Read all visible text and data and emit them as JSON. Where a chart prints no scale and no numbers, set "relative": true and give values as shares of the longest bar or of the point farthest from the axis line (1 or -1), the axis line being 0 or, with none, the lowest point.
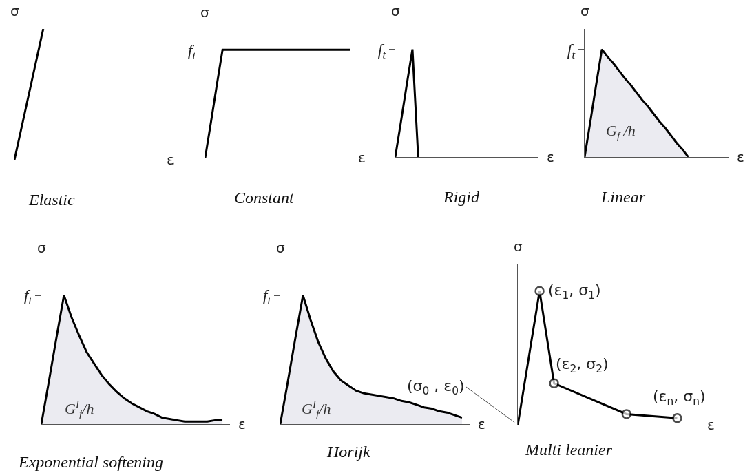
{
  "chart_data": [
    {
      "type": "line",
      "title": "Elastic",
      "xlabel": "ε",
      "ylabel": "σ",
      "relative": true,
      "categories": [
        null,
        null,
        null,
        null,
        null,
        null,
        null,
        null,
        null,
        null,
        null,
        null,
        null,
        null,
        null,
        null,
        null,
        null,
        null,
        null,
        null,
        null,
        null,
        null,
        null,
        null
      ],
      "values": [
        0,
        0.2,
        0.4,
        0.6,
        0.8,
        1,
        null,
        null,
        null,
        null,
        null,
        null,
        null,
        null,
        null,
        null,
        null,
        null,
        null,
        null,
        null,
        null,
        null,
        null,
        null,
        null
      ],
      "color": "#000000"
    },
    {
      "type": "line",
      "title": "Constant",
      "xlabel": "ε",
      "ylabel": "σ",
      "relative": true,
      "categories": [
        null,
        null,
        null,
        null,
        null,
        null,
        null,
        null,
        null,
        null,
        null,
        null,
        null,
        null,
        null,
        null,
        null,
        null,
        null,
        null,
        null,
        null,
        null,
        null,
        null,
        null
      ],
      "values": [
        0,
        0.33,
        0.67,
        1,
        1,
        1,
        1,
        1,
        1,
        1,
        1,
        1,
        1,
        1,
        1,
        1,
        1,
        1,
        1,
        1,
        1,
        1,
        1,
        1,
        1,
        1
      ],
      "color": "#000000",
      "annotations": [
        "f$_{t}$"
      ]
    },
    {
      "type": "line",
      "title": "Rigid",
      "xlabel": "ε",
      "ylabel": "σ",
      "relative": true,
      "categories": [
        null,
        null,
        null,
        null,
        null,
        null,
        null,
        null,
        null,
        null,
        null,
        null,
        null,
        null,
        null,
        null,
        null,
        null,
        null,
        null,
        null,
        null,
        null,
        null,
        null,
        null
      ],
      "values": [
        0,
        0.33,
        0.67,
        1,
        0,
        null,
        null,
        null,
        null,
        null,
        null,
        null,
        null,
        null,
        null,
        null,
        null,
        null,
        null,
        null,
        null,
        null,
        null,
        null,
        null,
        null
      ],
      "color": "#000000",
      "annotations": [
        "f$_{t}$"
      ]
    },
    {
      "type": "area",
      "title": "Linear",
      "xlabel": "ε",
      "ylabel": "σ",
      "relative": true,
      "categories": [
        null,
        null,
        null,
        null,
        null,
        null,
        null,
        null,
        null,
        null,
        null,
        null,
        null,
        null,
        null,
        null,
        null,
        null,
        null,
        null,
        null,
        null,
        null,
        null,
        null,
        null
      ],
      "values": [
        0,
        0.33,
        0.67,
        1,
        0.93,
        0.87,
        0.8,
        0.73,
        0.67,
        0.6,
        0.53,
        0.47,
        0.4,
        0.33,
        0.27,
        0.2,
        0.13,
        0.07,
        0,
        null,
        null,
        null,
        null,
        null,
        null,
        null
      ],
      "color": "#000000",
      "annotations": [
        "f$_{t}$",
        "G$_{f}$ /h"
      ]
    },
    {
      "type": "area",
      "title": "Exponential softening",
      "xlabel": "ε",
      "ylabel": "σ",
      "relative": true,
      "categories": [
        null,
        null,
        null,
        null,
        null,
        null,
        null,
        null,
        null,
        null,
        null,
        null,
        null,
        null,
        null,
        null,
        null,
        null,
        null,
        null,
        null,
        null,
        null,
        null,
        null,
        null
      ],
      "values": [
        0,
        0.33,
        0.67,
        1,
        0.83,
        0.69,
        0.56,
        0.47,
        0.38,
        0.31,
        0.25,
        0.2,
        0.16,
        0.13,
        0.1,
        0.08,
        0.05,
        0.04,
        0.03,
        0.02,
        0.02,
        0.02,
        0.02,
        0.03,
        0.03,
        null
      ],
      "color": "#000000",
      "annotations": [
        "f$_{t}$",
        "G$^{I}$$_{f}$/h"
      ]
    },
    {
      "type": "area",
      "title": "Horijk",
      "xlabel": "ε",
      "ylabel": "σ",
      "relative": true,
      "categories": [
        null,
        null,
        null,
        null,
        null,
        null,
        null,
        null,
        null,
        null,
        null,
        null,
        null,
        null,
        null,
        null,
        null,
        null,
        null,
        null,
        null,
        null,
        null,
        null,
        null,
        null
      ],
      "values": [
        0,
        0.33,
        0.67,
        1,
        0.81,
        0.64,
        0.51,
        0.41,
        0.34,
        0.3,
        0.26,
        0.24,
        0.23,
        0.22,
        0.21,
        0.2,
        0.18,
        0.17,
        0.15,
        0.13,
        0.12,
        0.1,
        0.09,
        0.07,
        0.05,
        null
      ],
      "color": "#000000",
      "annotations": [
        "f$_{t}$",
        "G$^{I}$$_{f}$/h"
      ]
    },
    {
      "type": "line",
      "title": "Multi leanier",
      "xlabel": "ε",
      "ylabel": "σ",
      "relative": true,
      "categories": [
        null,
        null,
        null,
        null,
        null,
        null,
        null,
        null,
        null,
        null,
        null,
        null,
        null,
        null,
        null,
        null,
        null,
        null,
        null,
        null,
        null,
        null,
        null,
        null,
        null,
        null
      ],
      "marker": "circle",
      "values": [
        0,
        null,
        null,
        1,
        null,
        0.31,
        null,
        null,
        null,
        null,
        null,
        null,
        null,
        null,
        null,
        0.08,
        null,
        null,
        null,
        null,
        null,
        null,
        0.05,
        null,
        null,
        null
      ],
      "color": "#000000",
      "annotations": [
        "(ε$_{1}$, σ$_{1}$)",
        "(ε$_{2}$, σ$_{2}$)",
        "(ε$_{n}$, σ$_{n}$)",
        "(σ$_{0}$ , ε$_{0}$)"
      ]
    }
  ]
}
